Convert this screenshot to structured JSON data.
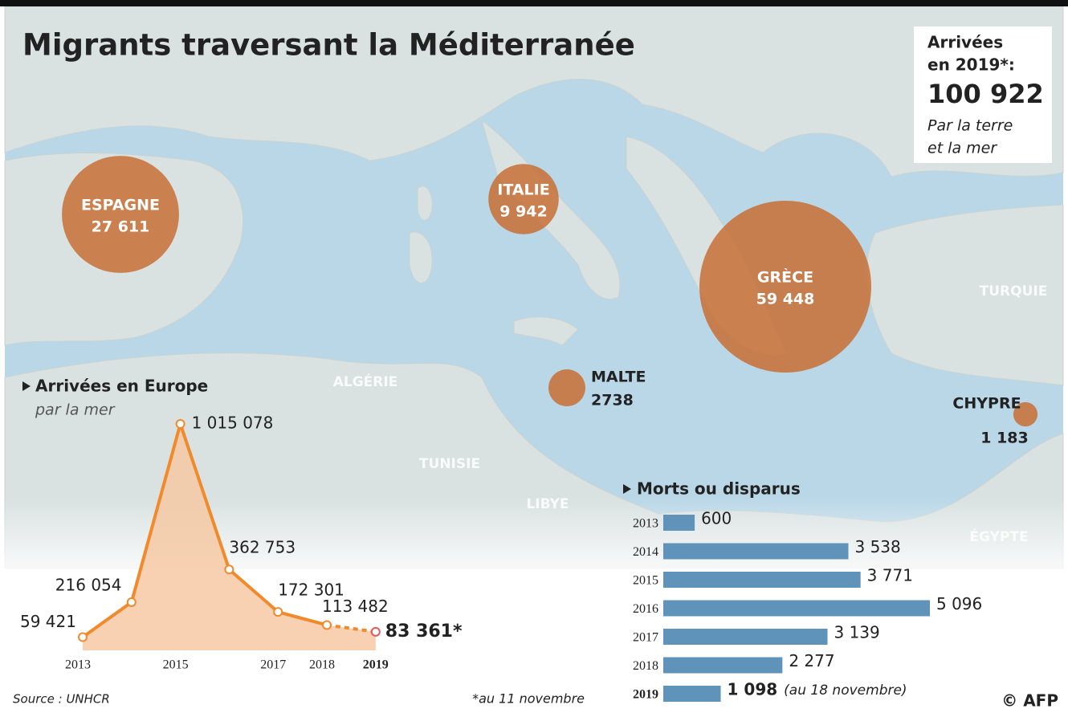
{
  "title": "Migrants traversant la Méditerranée",
  "summary": {
    "heading_1": "Arrivées",
    "heading_2": "en 2019*:",
    "value": "100 922",
    "note_1": "Par la terre",
    "note_2": "et la mer"
  },
  "map_labels": [
    "ALGÉRIE",
    "TUNISIE",
    "LIBYE",
    "TURQUIE",
    "ÉGYPTE"
  ],
  "source": "Source : UNHCR",
  "footnote": "*au 11 novembre",
  "credit": "© AFP",
  "chart_data": [
    {
      "type": "bubble",
      "categories": [
        "ESPAGNE",
        "ITALIE",
        "GRÈCE",
        "MALTE",
        "CHYPRE"
      ],
      "values": [
        27611,
        9942,
        59448,
        2738,
        1183
      ],
      "value_labels": [
        "27 611",
        "9 942",
        "59 448",
        "2738",
        "1 183"
      ],
      "color": "#c8723a"
    },
    {
      "type": "line",
      "title": "Arrivées en Europe",
      "subtitle": "par la mer",
      "categories": [
        "2013",
        null,
        "2015",
        null,
        "2017",
        "2018",
        "2019"
      ],
      "values": [
        59421,
        216054,
        1015078,
        362753,
        172301,
        113482,
        83361
      ],
      "value_labels": [
        "59 421",
        "216 054",
        "1 015 078",
        "362 753",
        "172 301",
        "113 482",
        "83 361*"
      ],
      "color": "#f08a2c"
    },
    {
      "type": "hbar",
      "title": "Morts ou disparus",
      "categories": [
        "2013",
        "2014",
        "2015",
        "2016",
        "2017",
        "2018",
        "2019"
      ],
      "values": [
        600,
        3538,
        3771,
        5096,
        3139,
        2277,
        1098
      ],
      "value_labels": [
        "600",
        "3 538",
        "3 771",
        "5 096",
        "3 139",
        "2 277",
        "1 098"
      ],
      "note": "(au 18 novembre)",
      "color": "#5f93ba"
    }
  ]
}
